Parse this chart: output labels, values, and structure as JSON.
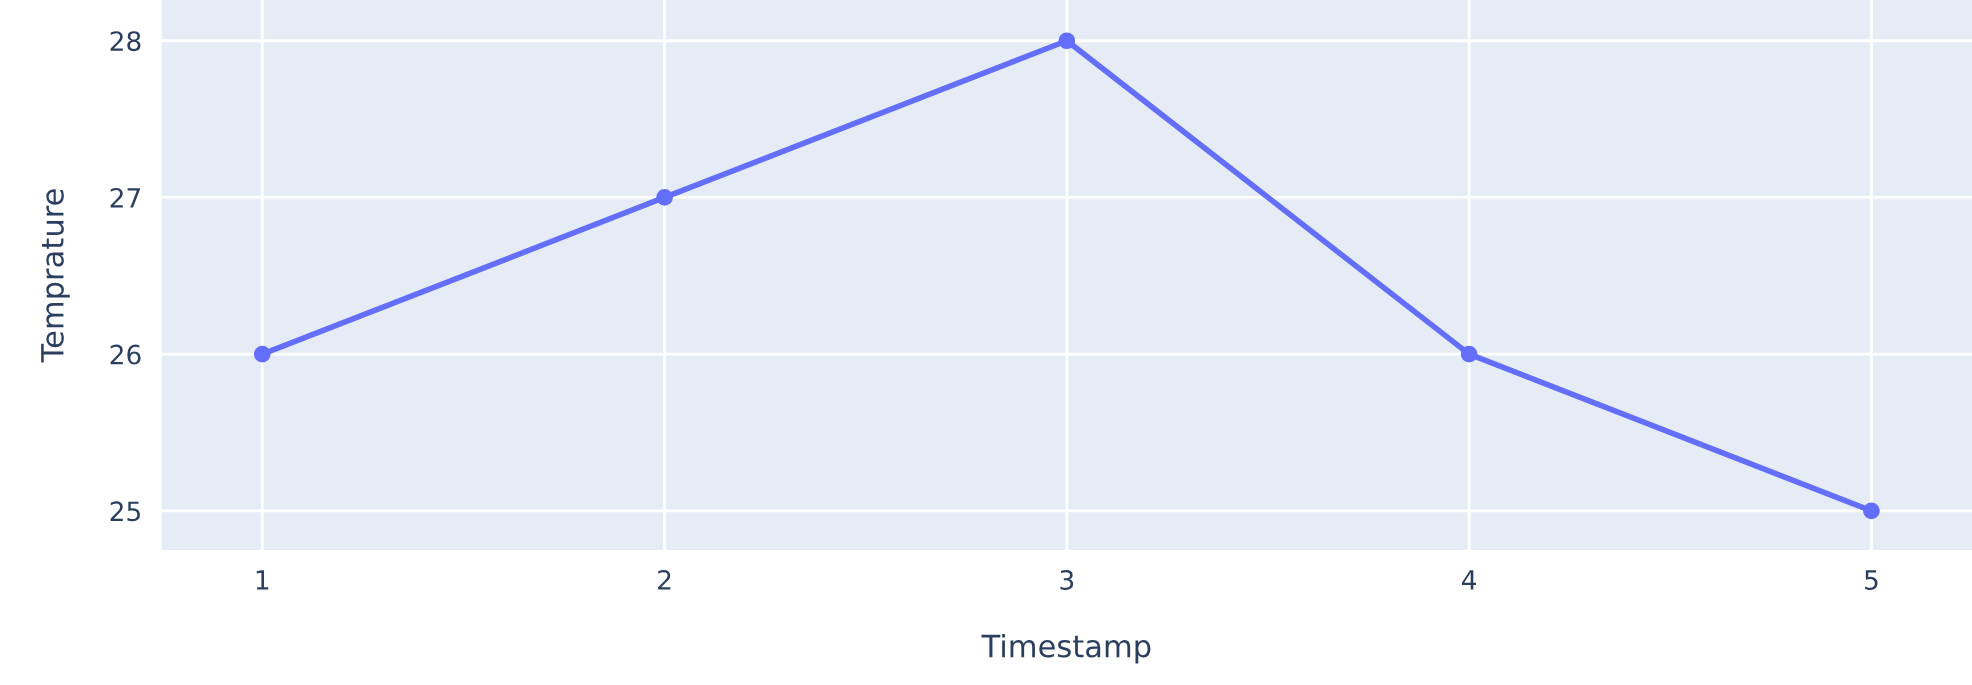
{
  "chart_data": {
    "type": "line",
    "xlabel": "Timestamp",
    "ylabel": "Temprature",
    "x": [
      1,
      2,
      3,
      4,
      5
    ],
    "series": [
      {
        "color": "#636efa",
        "values": [
          26,
          27,
          28,
          26,
          25
        ]
      }
    ],
    "xlim": [
      0.75,
      5.25
    ],
    "xticks": [
      1,
      2,
      3,
      4,
      5
    ],
    "ylim": [
      24.75,
      28.26
    ],
    "yticks": [
      25,
      26,
      27,
      28
    ],
    "grid": true,
    "marker": "circle",
    "line_style": "solid"
  }
}
